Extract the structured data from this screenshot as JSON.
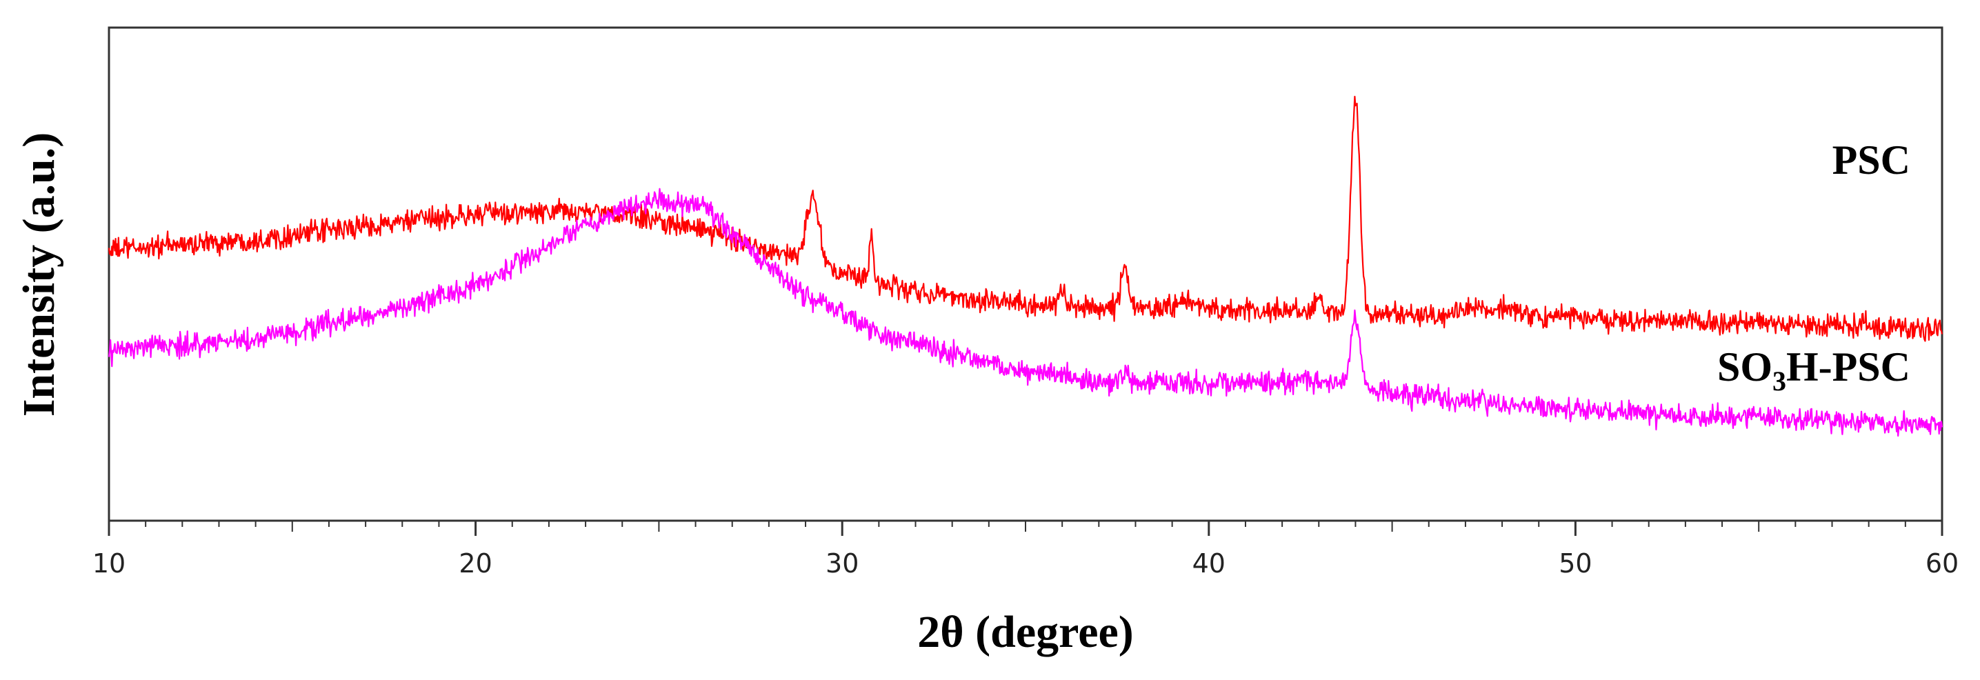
{
  "chart_data": {
    "type": "line",
    "title": "",
    "xlabel": "2θ (degree)",
    "ylabel": "Intensity (a.u.)",
    "xlim": [
      10,
      60
    ],
    "x_ticks": [
      "10",
      "20",
      "30",
      "40",
      "50",
      "60"
    ],
    "y_ticks_labeled": false,
    "grid": false,
    "legend": "none",
    "series": [
      {
        "name": "PSC",
        "color": "#ff0000",
        "relative_offset": 0.62,
        "baseline": [
          [
            10,
            0.48
          ],
          [
            14,
            0.55
          ],
          [
            17,
            0.64
          ],
          [
            20,
            0.72
          ],
          [
            23,
            0.74
          ],
          [
            25,
            0.68
          ],
          [
            27,
            0.56
          ],
          [
            28.6,
            0.44
          ],
          [
            30,
            0.32
          ],
          [
            32,
            0.2
          ],
          [
            34,
            0.14
          ],
          [
            36,
            0.1
          ],
          [
            38,
            0.09
          ],
          [
            40,
            0.08
          ],
          [
            43,
            0.06
          ],
          [
            45,
            0.05
          ],
          [
            48,
            0.03
          ],
          [
            52,
            0.01
          ],
          [
            56,
            -0.02
          ],
          [
            60,
            -0.04
          ]
        ],
        "peaks": [
          [
            29.2,
            0.42,
            0.18
          ],
          [
            30.8,
            0.28,
            0.06
          ],
          [
            36.0,
            0.12,
            0.07
          ],
          [
            37.7,
            0.26,
            0.1
          ],
          [
            39.3,
            0.05,
            0.3
          ],
          [
            43.0,
            0.1,
            0.1
          ],
          [
            44.0,
            1.44,
            0.12
          ],
          [
            47.3,
            0.05,
            0.45
          ],
          [
            48.2,
            0.04,
            0.4
          ]
        ]
      },
      {
        "name": "SO3H-PSC",
        "name_parts": [
          "SO",
          "3",
          "H-PSC"
        ],
        "color": "#ff00ff",
        "relative_offset": 0.0,
        "baseline": [
          [
            10,
            0.42
          ],
          [
            14,
            0.5
          ],
          [
            17,
            0.65
          ],
          [
            20,
            0.86
          ],
          [
            22,
            1.12
          ],
          [
            24,
            1.38
          ],
          [
            25,
            1.44
          ],
          [
            26.2,
            1.38
          ],
          [
            27.5,
            1.1
          ],
          [
            29,
            0.8
          ],
          [
            31,
            0.54
          ],
          [
            33,
            0.4
          ],
          [
            35,
            0.28
          ],
          [
            37,
            0.22
          ],
          [
            40,
            0.2
          ],
          [
            43,
            0.22
          ],
          [
            45,
            0.14
          ],
          [
            48,
            0.06
          ],
          [
            52,
            0.0
          ],
          [
            56,
            -0.04
          ],
          [
            60,
            -0.08
          ]
        ],
        "peaks": [
          [
            37.7,
            0.05,
            0.1
          ],
          [
            44.0,
            0.46,
            0.13
          ]
        ]
      }
    ]
  }
}
